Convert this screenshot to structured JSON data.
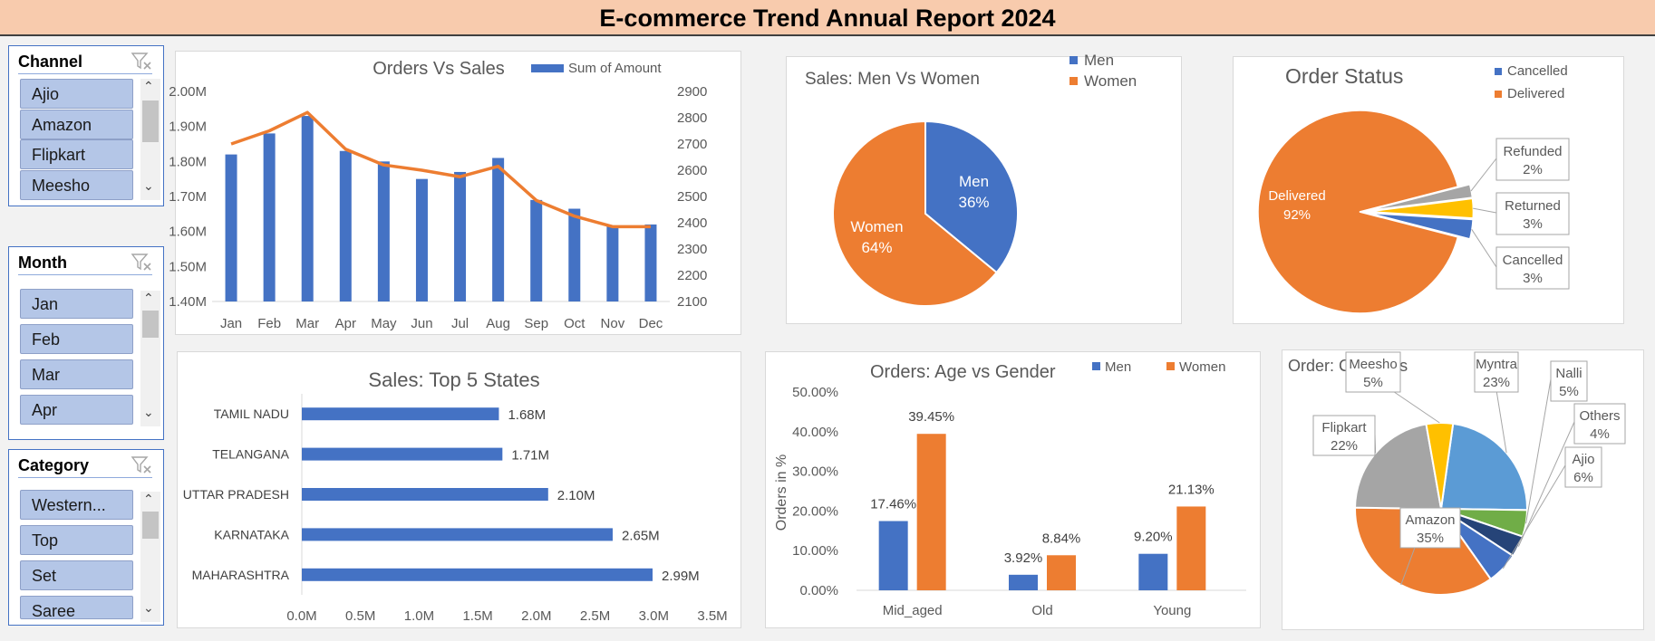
{
  "report": {
    "title": "E-commerce Trend Annual Report 2024"
  },
  "slicers": [
    {
      "title": "Channel",
      "items": [
        "Ajio",
        "Amazon",
        "Flipkart",
        "Meesho"
      ]
    },
    {
      "title": "Month",
      "items": [
        "Jan",
        "Feb",
        "Mar",
        "Apr"
      ]
    },
    {
      "title": "Category",
      "items": [
        "Western...",
        "Top",
        "Set",
        "Saree"
      ]
    }
  ],
  "chart_data": [
    {
      "type": "bar",
      "title": "Orders Vs Sales",
      "categories": [
        "Jan",
        "Feb",
        "Mar",
        "Apr",
        "May",
        "Jun",
        "Jul",
        "Aug",
        "Sep",
        "Oct",
        "Nov",
        "Dec"
      ],
      "series": [
        {
          "name": "Sum of Amount",
          "type": "bar",
          "axis": "left",
          "values": [
            1.82,
            1.88,
            1.93,
            1.83,
            1.8,
            1.75,
            1.77,
            1.81,
            1.69,
            1.665,
            1.615,
            1.62
          ]
        },
        {
          "type": "line",
          "axis": "right",
          "values": [
            2700,
            2750,
            2820,
            2680,
            2620,
            2600,
            2575,
            2615,
            2485,
            2425,
            2385,
            2385
          ]
        }
      ],
      "y_left": {
        "min": 1.4,
        "max": 2.0,
        "ticks": [
          "1.40M",
          "1.50M",
          "1.60M",
          "1.70M",
          "1.80M",
          "1.90M",
          "2.00M"
        ]
      },
      "y_right": {
        "min": 2100,
        "max": 2900,
        "ticks": [
          "2100",
          "2200",
          "2300",
          "2400",
          "2500",
          "2600",
          "2700",
          "2800",
          "2900"
        ]
      },
      "legend": "top-right",
      "colors": {
        "bar": "#4472c4",
        "line": "#ed7d31"
      }
    },
    {
      "type": "pie",
      "title": "Sales: Men Vs Women",
      "slices": [
        {
          "name": "Men",
          "value": 36,
          "label": "36%",
          "color": "#4472c4"
        },
        {
          "name": "Women",
          "value": 64,
          "label": "64%",
          "color": "#ed7d31"
        }
      ],
      "legend": [
        "Men",
        "Women"
      ]
    },
    {
      "type": "pie",
      "title": "Order Status",
      "slices": [
        {
          "name": "Delivered",
          "value": 92,
          "label": "92%",
          "color": "#ed7d31"
        },
        {
          "name": "Cancelled",
          "value": 3,
          "label": "3%",
          "color": "#4472c4"
        },
        {
          "name": "Returned",
          "value": 3,
          "label": "3%",
          "color": "#ffc000"
        },
        {
          "name": "Refunded",
          "value": 2,
          "label": "2%",
          "color": "#a5a5a5"
        }
      ],
      "legend": [
        "Cancelled",
        "Delivered"
      ]
    },
    {
      "type": "bar",
      "orientation": "horizontal",
      "title": "Sales: Top 5 States",
      "categories": [
        "TAMIL NADU",
        "TELANGANA",
        "UTTAR PRADESH",
        "KARNATAKA",
        "MAHARASHTRA"
      ],
      "values": [
        1.68,
        1.71,
        2.1,
        2.65,
        2.99
      ],
      "labels": [
        "1.68M",
        "1.71M",
        "2.10M",
        "2.65M",
        "2.99M"
      ],
      "xlim": [
        0,
        3.5
      ],
      "ticks": [
        "0.0M",
        "0.5M",
        "1.0M",
        "1.5M",
        "2.0M",
        "2.5M",
        "3.0M",
        "3.5M"
      ],
      "color": "#4472c4"
    },
    {
      "type": "bar",
      "title": "Orders: Age vs Gender",
      "ylabel": "Orders in %",
      "categories": [
        "Mid_aged",
        "Old",
        "Young"
      ],
      "series": [
        {
          "name": "Men",
          "values": [
            17.46,
            3.92,
            9.2
          ],
          "labels": [
            "17.46%",
            "3.92%",
            "9.20%"
          ],
          "color": "#4472c4"
        },
        {
          "name": "Women",
          "values": [
            39.45,
            8.84,
            21.13
          ],
          "labels": [
            "39.45%",
            "8.84%",
            "21.13%"
          ],
          "color": "#ed7d31"
        }
      ],
      "ylim": [
        0,
        50
      ],
      "ticks": [
        "0.00%",
        "10.00%",
        "20.00%",
        "30.00%",
        "40.00%",
        "50.00%"
      ],
      "legend": "top-right"
    },
    {
      "type": "pie",
      "title": "Order: Channels",
      "slices": [
        {
          "name": "Myntra",
          "value": 23,
          "label": "23%",
          "color": "#5b9bd5"
        },
        {
          "name": "Nalli",
          "value": 5,
          "label": "5%",
          "color": "#70ad47"
        },
        {
          "name": "Others",
          "value": 4,
          "label": "4%",
          "color": "#264478"
        },
        {
          "name": "Ajio",
          "value": 6,
          "label": "6%",
          "color": "#4472c4"
        },
        {
          "name": "Amazon",
          "value": 35,
          "label": "35%",
          "color": "#ed7d31"
        },
        {
          "name": "Flipkart",
          "value": 22,
          "label": "22%",
          "color": "#a5a5a5"
        },
        {
          "name": "Meesho",
          "value": 5,
          "label": "5%",
          "color": "#ffc000"
        }
      ]
    }
  ]
}
